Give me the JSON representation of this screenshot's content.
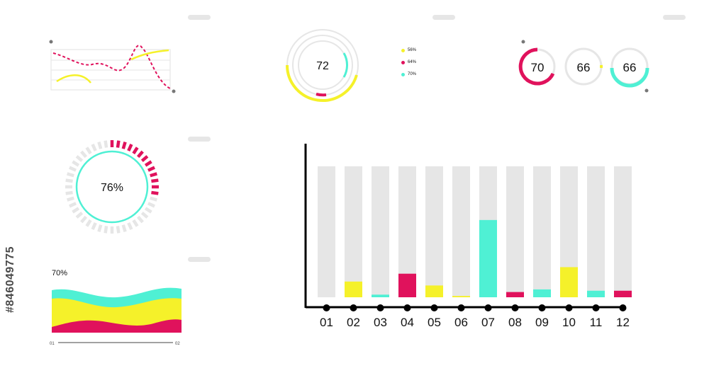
{
  "colors": {
    "yellow": "#f5f12a",
    "magenta": "#e0125c",
    "cyan": "#4ff0d4",
    "gray": "#e6e6e6",
    "axis": "#000000"
  },
  "watermark_id": "#846049775",
  "rings_panel": {
    "center_value": "72",
    "legend": [
      "56%",
      "64%",
      "70%"
    ]
  },
  "kpi_rings": [
    {
      "value": "70",
      "color": "magenta",
      "fraction": 0.55
    },
    {
      "value": "66",
      "color": "yellow",
      "fraction": 0.02
    },
    {
      "value": "66",
      "color": "cyan",
      "fraction": 0.35
    }
  ],
  "donut": {
    "label": "76%",
    "fraction": 0.3
  },
  "wave": {
    "percent_label": "70%",
    "axis_start": "01",
    "axis_end": "02"
  },
  "chart_data": {
    "type": "bar",
    "categories": [
      "01",
      "02",
      "03",
      "04",
      "05",
      "06",
      "07",
      "08",
      "09",
      "10",
      "11",
      "12"
    ],
    "values": [
      0,
      12,
      2,
      18,
      9,
      1,
      59,
      4,
      6,
      23,
      5,
      5
    ],
    "colors": [
      "gray",
      "yellow",
      "cyan",
      "magenta",
      "yellow",
      "yellow",
      "cyan",
      "magenta",
      "cyan",
      "yellow",
      "cyan",
      "magenta"
    ],
    "ylim": [
      0,
      100
    ],
    "grid": false
  }
}
